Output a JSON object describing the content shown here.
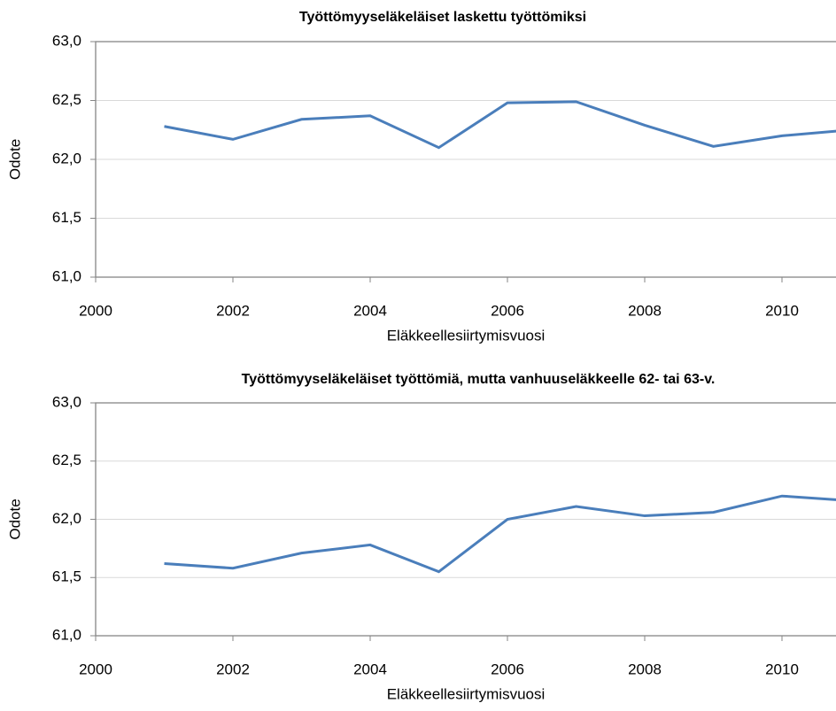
{
  "chart_data": [
    {
      "type": "line",
      "title": "Työttömyyseläkeläiset laskettu työttömiksi",
      "x_label": "Eläkkeellesiirtymisvuosi",
      "y_label": "Odote",
      "x": [
        2001,
        2002,
        2003,
        2004,
        2005,
        2006,
        2007,
        2008,
        2009,
        2010,
        2011
      ],
      "series": [
        {
          "name": "Odote",
          "color": "#4a7ebb",
          "values": [
            62.28,
            62.17,
            62.34,
            62.37,
            62.1,
            62.48,
            62.49,
            62.29,
            62.11,
            62.2,
            62.25
          ]
        }
      ],
      "xlim": [
        2000,
        2010.8
      ],
      "xticks": [
        2000,
        2002,
        2004,
        2006,
        2008,
        2010
      ],
      "ylim": [
        61,
        63
      ],
      "yticks": [
        {
          "value": 61,
          "label": "61,0"
        },
        {
          "value": 61.5,
          "label": "61,5"
        },
        {
          "value": 62,
          "label": "62,0"
        },
        {
          "value": 62.5,
          "label": "62,5"
        },
        {
          "value": 63,
          "label": "63,0"
        }
      ],
      "grid": true
    },
    {
      "type": "line",
      "title": "Työttömyyseläkeläiset työttömiä, mutta vanhuuseläkkeelle 62- tai 63-v.",
      "x_label": "Eläkkeellesiirtymisvuosi",
      "y_label": "Odote",
      "x": [
        2001,
        2002,
        2003,
        2004,
        2005,
        2006,
        2007,
        2008,
        2009,
        2010,
        2011
      ],
      "series": [
        {
          "name": "Odote",
          "color": "#4a7ebb",
          "values": [
            61.62,
            61.58,
            61.71,
            61.78,
            61.55,
            62.0,
            62.11,
            62.03,
            62.06,
            62.2,
            62.16
          ]
        }
      ],
      "xlim": [
        2000,
        2010.8
      ],
      "xticks": [
        2000,
        2002,
        2004,
        2006,
        2008,
        2010
      ],
      "ylim": [
        61,
        63
      ],
      "yticks": [
        {
          "value": 61,
          "label": "61,0"
        },
        {
          "value": 61.5,
          "label": "61,5"
        },
        {
          "value": 62,
          "label": "62,0"
        },
        {
          "value": 62.5,
          "label": "62,5"
        },
        {
          "value": 63,
          "label": "63,0"
        }
      ],
      "grid": true
    }
  ]
}
